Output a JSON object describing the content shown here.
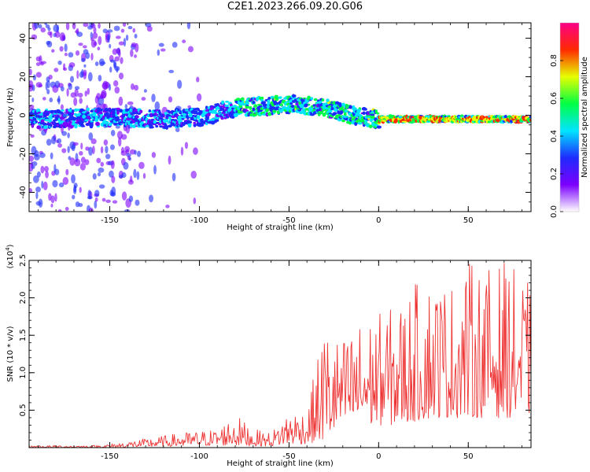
{
  "title": "C2E1.2023.266.09.20.G06",
  "chart_data": [
    {
      "type": "heatmap",
      "xlabel": "Height of straight line (km)",
      "ylabel": "Frequency (Hz)",
      "xlim": [
        -195,
        85
      ],
      "ylim": [
        -50,
        48
      ],
      "xticks": [
        -150,
        -100,
        -50,
        0,
        50
      ],
      "xtick_labels": [
        "-150",
        "-100",
        "-50",
        "0",
        "50"
      ],
      "yticks": [
        -40,
        -20,
        0,
        20,
        40
      ],
      "ytick_labels": [
        "-40",
        "-20",
        "0",
        "20",
        "40"
      ],
      "ridge": {
        "x": [
          -195,
          -150,
          -120,
          -100,
          -80,
          -60,
          -50,
          -40,
          -30,
          -20,
          -10,
          0,
          20,
          50,
          85
        ],
        "y": [
          -2,
          -1,
          -2,
          -1,
          4,
          5,
          6,
          5,
          4,
          1,
          -1,
          -2,
          -2,
          -2,
          -2
        ]
      },
      "colorbar": {
        "label": "Normalized spectral amplitude",
        "range": [
          0.0,
          1.0
        ],
        "ticks": [
          0.0,
          0.2,
          0.4,
          0.6,
          0.8
        ],
        "tick_labels": [
          "0.0",
          "0.2",
          "0.4",
          "0.6",
          "0.8"
        ],
        "colors": [
          "#ffffff",
          "#7b00ff",
          "#1e2bff",
          "#00e5ff",
          "#00ff44",
          "#e6ff00",
          "#ff2a00",
          "#ff0088"
        ]
      },
      "grid": false
    },
    {
      "type": "line",
      "xlabel": "Height of straight line (km)",
      "ylabel": "SNR (10 * v/v)",
      "ylabel_multiplier": "(x10^4)",
      "ylabel_multiplier_base": "(x10",
      "ylabel_multiplier_exp": "4",
      "ylabel_multiplier_close": ")",
      "xlim": [
        -195,
        85
      ],
      "ylim": [
        0,
        2.5
      ],
      "xticks": [
        -150,
        -100,
        -50,
        0,
        50
      ],
      "xtick_labels": [
        "-150",
        "-100",
        "-50",
        "0",
        "50"
      ],
      "yticks": [
        0.5,
        1.0,
        1.5,
        2.0,
        2.5
      ],
      "ytick_labels": [
        "0.5",
        "1.0",
        "1.5",
        "2.0",
        "2.5"
      ],
      "line_color": "#ee3333",
      "series_envelope": {
        "x": [
          -195,
          -160,
          -150,
          -130,
          -110,
          -90,
          -80,
          -70,
          -60,
          -50,
          -40,
          -30,
          -25,
          -20,
          -10,
          0,
          10,
          20,
          30,
          40,
          50,
          60,
          70,
          80,
          85
        ],
        "low": [
          0.0,
          0.0,
          0.0,
          0.01,
          0.02,
          0.03,
          0.03,
          0.02,
          0.02,
          0.05,
          0.05,
          0.1,
          0.2,
          0.3,
          0.3,
          0.3,
          0.3,
          0.35,
          0.4,
          0.4,
          0.4,
          0.4,
          0.4,
          0.4,
          0.4
        ],
        "high": [
          0.03,
          0.03,
          0.05,
          0.12,
          0.2,
          0.25,
          0.45,
          0.25,
          0.2,
          0.5,
          0.5,
          1.7,
          1.5,
          1.45,
          1.7,
          1.8,
          1.9,
          2.2,
          2.3,
          2.2,
          2.5,
          2.4,
          2.5,
          2.3,
          2.2
        ]
      },
      "grid": false
    }
  ]
}
